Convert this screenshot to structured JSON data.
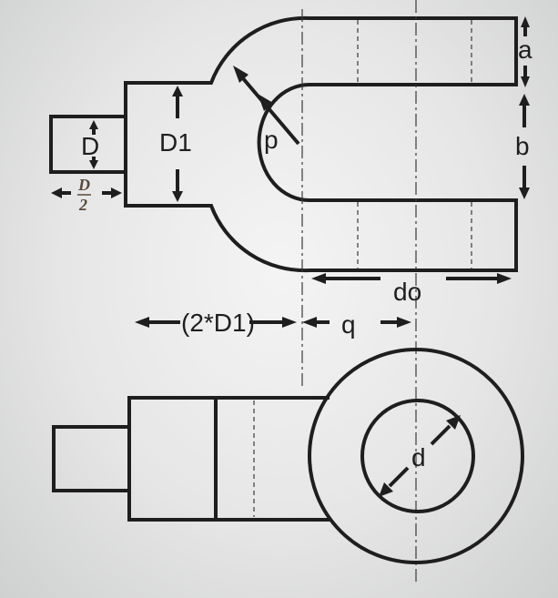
{
  "labels": {
    "a": "a",
    "b": "b",
    "D": "D",
    "D1": "D1",
    "p": "p",
    "do": "do",
    "q": "q",
    "twoD1": "(2*D1)",
    "d": "d",
    "half_D_num": "D",
    "half_D_den": "2"
  },
  "colors": {
    "line": "#1e1e1e",
    "fraction": "#5a4a3a"
  }
}
